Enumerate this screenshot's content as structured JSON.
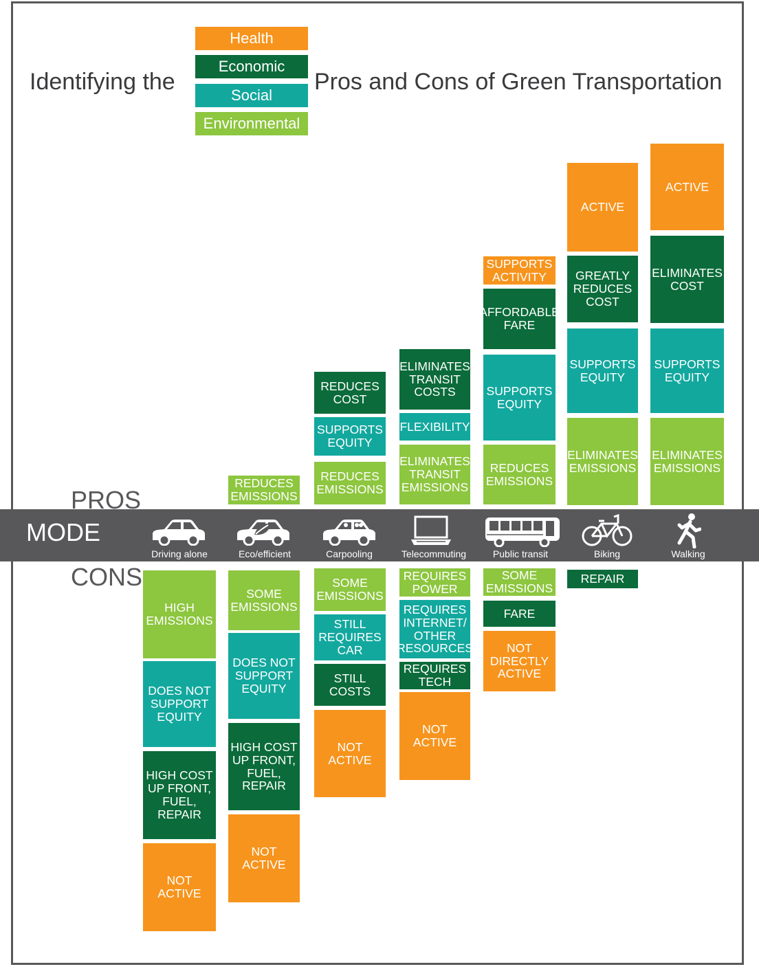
{
  "colors": {
    "health": "#f7941d",
    "economic": "#0b6b3a",
    "social": "#13a89e",
    "environmental": "#8dc63f",
    "band": "#58585a",
    "text": "#3a3a3c"
  },
  "title": {
    "left": "Identifying the",
    "right": "Pros and Cons of Green Transportation"
  },
  "legend": [
    {
      "key": "health",
      "label": "Health"
    },
    {
      "key": "economic",
      "label": "Economic"
    },
    {
      "key": "social",
      "label": "Social"
    },
    {
      "key": "environmental",
      "label": "Environmental"
    }
  ],
  "labels": {
    "pros": "PROS",
    "mode": "MODE",
    "cons": "CONS"
  },
  "modes": [
    {
      "label": "Driving alone",
      "icon": "car-icon"
    },
    {
      "label": "Eco/efficient",
      "icon": "eco-car-icon"
    },
    {
      "label": "Carpooling",
      "icon": "carpool-car-icon"
    },
    {
      "label": "Telecommuting",
      "icon": "laptop-icon"
    },
    {
      "label": "Public transit",
      "icon": "bus-icon"
    },
    {
      "label": "Biking",
      "icon": "bicycle-icon"
    },
    {
      "label": "Walking",
      "icon": "walking-person-icon"
    }
  ],
  "pros": [
    [],
    [
      {
        "cat": "environmental",
        "text": "REDUCES\nEMISSIONS"
      }
    ],
    [
      {
        "cat": "economic",
        "text": "REDUCES\nCOST"
      },
      {
        "cat": "social",
        "text": "SUPPORTS\nEQUITY"
      },
      {
        "cat": "environmental",
        "text": "REDUCES\nEMISSIONS"
      }
    ],
    [
      {
        "cat": "economic",
        "text": "ELIMINATES\nTRANSIT\nCOSTS"
      },
      {
        "cat": "social",
        "text": "FLEXIBILITY"
      },
      {
        "cat": "environmental",
        "text": "ELIMINATES\nTRANSIT\nEMISSIONS"
      }
    ],
    [
      {
        "cat": "health",
        "text": "SUPPORTS\nACTIVITY"
      },
      {
        "cat": "economic",
        "text": "AFFORDABLE\nFARE"
      },
      {
        "cat": "social",
        "text": "SUPPORTS\nEQUITY"
      },
      {
        "cat": "environmental",
        "text": "REDUCES\nEMISSIONS"
      }
    ],
    [
      {
        "cat": "health",
        "text": "ACTIVE"
      },
      {
        "cat": "economic",
        "text": "GREATLY\nREDUCES\nCOST"
      },
      {
        "cat": "social",
        "text": "SUPPORTS\nEQUITY"
      },
      {
        "cat": "environmental",
        "text": "ELIMINATES\nEMISSIONS"
      }
    ],
    [
      {
        "cat": "health",
        "text": "ACTIVE"
      },
      {
        "cat": "economic",
        "text": "ELIMINATES\nCOST"
      },
      {
        "cat": "social",
        "text": "SUPPORTS\nEQUITY"
      },
      {
        "cat": "environmental",
        "text": "ELIMINATES\nEMISSIONS"
      }
    ]
  ],
  "cons": [
    [
      {
        "cat": "environmental",
        "text": "HIGH\nEMISSIONS"
      },
      {
        "cat": "social",
        "text": "DOES NOT\nSUPPORT\nEQUITY"
      },
      {
        "cat": "economic",
        "text": "HIGH COST\nUP FRONT,\nFUEL,\nREPAIR"
      },
      {
        "cat": "health",
        "text": "NOT\nACTIVE"
      }
    ],
    [
      {
        "cat": "environmental",
        "text": "SOME\nEMISSIONS"
      },
      {
        "cat": "social",
        "text": "DOES NOT\nSUPPORT\nEQUITY"
      },
      {
        "cat": "economic",
        "text": "HIGH COST\nUP FRONT,\nFUEL,\nREPAIR"
      },
      {
        "cat": "health",
        "text": "NOT\nACTIVE"
      }
    ],
    [
      {
        "cat": "environmental",
        "text": "SOME\nEMISSIONS"
      },
      {
        "cat": "social",
        "text": "STILL\nREQUIRES\nCAR"
      },
      {
        "cat": "economic",
        "text": "STILL\nCOSTS"
      },
      {
        "cat": "health",
        "text": "NOT\nACTIVE"
      }
    ],
    [
      {
        "cat": "environmental",
        "text": "REQUIRES\nPOWER"
      },
      {
        "cat": "social",
        "text": "REQUIRES\nINTERNET/\nOTHER\nRESOURCES"
      },
      {
        "cat": "economic",
        "text": "REQUIRES\nTECH"
      },
      {
        "cat": "health",
        "text": "NOT\nACTIVE"
      }
    ],
    [
      {
        "cat": "environmental",
        "text": "SOME\nEMISSIONS"
      },
      {
        "cat": "economic",
        "text": "FARE"
      },
      {
        "cat": "health",
        "text": "NOT\nDIRECTLY\nACTIVE"
      }
    ],
    [
      {
        "cat": "economic",
        "text": "REPAIR"
      }
    ],
    []
  ]
}
